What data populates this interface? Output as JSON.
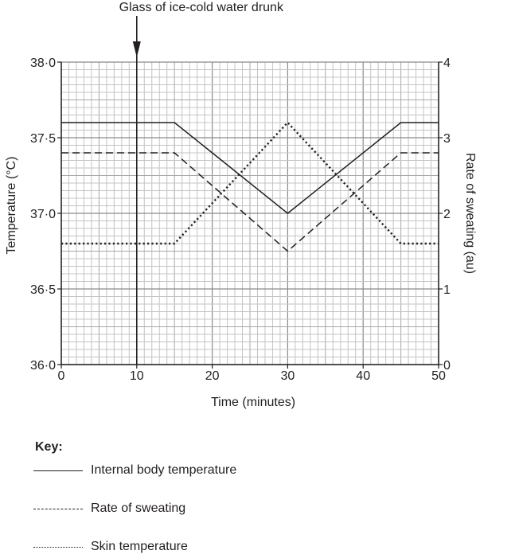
{
  "annotation": {
    "text": "Glass of ice-cold water drunk",
    "time": 10
  },
  "axes": {
    "left_label": "Temperature (°C)",
    "right_label": "Rate of sweating (au)",
    "x_label": "Time (minutes)",
    "left_ticks": [
      "36·0",
      "36·5",
      "37·0",
      "37·5",
      "38·0"
    ],
    "right_ticks": [
      "0",
      "1",
      "2",
      "3",
      "4"
    ],
    "x_ticks": [
      "0",
      "10",
      "20",
      "30",
      "40",
      "50"
    ]
  },
  "key": {
    "title": "Key:",
    "items": [
      {
        "label": "Internal body temperature",
        "style": "solid"
      },
      {
        "label": "Rate of sweating",
        "style": "dashed"
      },
      {
        "label": "Skin temperature",
        "style": "dotted"
      }
    ]
  },
  "chart_data": {
    "type": "line",
    "title": "",
    "annotations": [
      {
        "x": 10,
        "text": "Glass of ice-cold water drunk"
      }
    ],
    "xlabel": "Time (minutes)",
    "ylabel": "Temperature (°C)",
    "y2label": "Rate of sweating (au)",
    "xlim": [
      0,
      50
    ],
    "ylim": [
      36.0,
      38.0
    ],
    "y2lim": [
      0,
      4
    ],
    "x_ticks": [
      0,
      10,
      20,
      30,
      40,
      50
    ],
    "y_ticks": [
      36.0,
      36.5,
      37.0,
      37.5,
      38.0
    ],
    "y2_ticks": [
      0,
      1,
      2,
      3,
      4
    ],
    "grid": true,
    "legend_position": "below",
    "x": [
      0,
      15,
      30,
      45,
      50
    ],
    "series": [
      {
        "name": "Internal body temperature",
        "axis": "left",
        "style": "solid",
        "values": [
          37.6,
          37.6,
          37.0,
          37.6,
          37.6
        ]
      },
      {
        "name": "Rate of sweating",
        "axis": "right",
        "style": "dashed",
        "values": [
          2.8,
          2.8,
          1.5,
          2.8,
          2.8
        ]
      },
      {
        "name": "Skin temperature",
        "axis": "left",
        "style": "dotted",
        "values": [
          36.8,
          36.8,
          37.6,
          36.8,
          36.8
        ]
      }
    ]
  }
}
